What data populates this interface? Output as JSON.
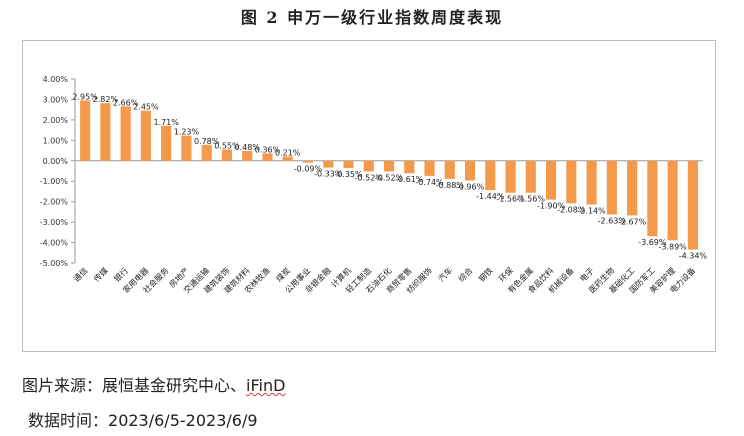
{
  "figure": {
    "title": "图 2 申万一级行业指数周度表现"
  },
  "footer": {
    "source_label": "图片来源：",
    "source_text": "展恒基金研究中心、",
    "source_brand": "iFinD",
    "date_label": "数据时间：",
    "date_text": "2023/6/5-2023/6/9"
  },
  "chart_data": {
    "type": "bar",
    "title": "",
    "xlabel": "",
    "ylabel": "",
    "ylim": [
      -0.05,
      0.04
    ],
    "yticks": [
      "4.00%",
      "3.00%",
      "2.00%",
      "1.00%",
      "0.00%",
      "-1.00%",
      "-2.00%",
      "-3.00%",
      "-4.00%",
      "-5.00%"
    ],
    "grid": false,
    "legend": "none",
    "bar_color": "#f59a4a",
    "categories": [
      "通信",
      "传媒",
      "银行",
      "家用电器",
      "社会服务",
      "房地产",
      "交通运输",
      "建筑装饰",
      "建筑材料",
      "农林牧渔",
      "煤炭",
      "公用事业",
      "非银金融",
      "计算机",
      "轻工制造",
      "石油石化",
      "商贸零售",
      "纺织服饰",
      "汽车",
      "综合",
      "钢铁",
      "环保",
      "有色金属",
      "食品饮料",
      "机械设备",
      "电子",
      "医药生物",
      "基础化工",
      "国防军工",
      "美容护理",
      "电力设备"
    ],
    "values": [
      0.0295,
      0.0282,
      0.0266,
      0.0245,
      0.0171,
      0.0123,
      0.0078,
      0.0055,
      0.0048,
      0.0036,
      0.0021,
      -0.0009,
      -0.0033,
      -0.0035,
      -0.0052,
      -0.0052,
      -0.0061,
      -0.0074,
      -0.0088,
      -0.0096,
      -0.0144,
      -0.0156,
      -0.0156,
      -0.019,
      -0.0208,
      -0.0214,
      -0.0263,
      -0.0267,
      -0.0369,
      -0.0389,
      -0.0434
    ],
    "data_labels": [
      "2.95%",
      "2.82%",
      "2.66%",
      "2.45%",
      "1.71%",
      "1.23%",
      "0.78%",
      "0.55%",
      "0.48%",
      "0.36%",
      "0.21%",
      "-0.09%",
      "-0.33%",
      "-0.35%",
      "-0.52%",
      "-0.52%",
      "-0.61%",
      "-0.74%",
      "-0.88%",
      "-0.96%",
      "-1.44%",
      "-1.56%",
      "-1.56%",
      "-1.90%",
      "-2.08%",
      "-2.14%",
      "-2.63%",
      "-2.67%",
      "-3.69%",
      "-3.89%",
      "-4.34%"
    ]
  }
}
